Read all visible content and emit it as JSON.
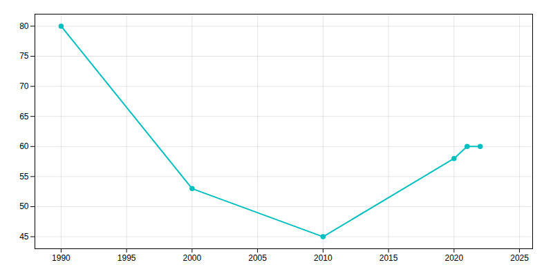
{
  "chart_data": {
    "type": "line",
    "x": [
      1990,
      2000,
      2010,
      2020,
      2021,
      2022
    ],
    "values": [
      80,
      53,
      45,
      58,
      60,
      60
    ],
    "color": "#00BFBF",
    "marker": "circle",
    "xlim": [
      1988,
      2026
    ],
    "ylim": [
      43,
      82
    ],
    "xticks": [
      1990,
      1995,
      2000,
      2005,
      2010,
      2015,
      2020,
      2025
    ],
    "yticks": [
      45,
      50,
      55,
      60,
      65,
      70,
      75,
      80
    ],
    "grid": true
  }
}
